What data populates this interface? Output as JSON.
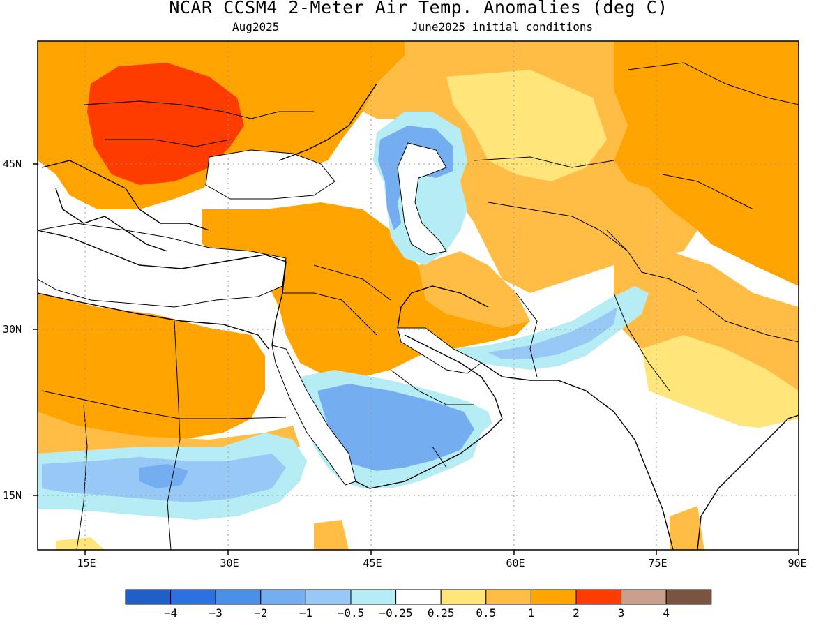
{
  "header": {
    "title": "NCAR_CCSM4 2-Meter Air Temp. Anomalies (deg C)",
    "valid_month": "Aug2025",
    "initial_conditions": "June2025 initial conditions"
  },
  "axes": {
    "lat_ticks": [
      "45N",
      "30N",
      "15N"
    ],
    "lon_ticks": [
      "15E",
      "30E",
      "45E",
      "60E",
      "75E",
      "90E"
    ]
  },
  "colorbar": {
    "colors": [
      "#1f5fc8",
      "#2b72e0",
      "#4a90e8",
      "#75aef0",
      "#98c8f5",
      "#b6ecf4",
      "#ffffff",
      "#ffe57a",
      "#ffbd45",
      "#ffa400",
      "#ff3c00",
      "#c8a08c",
      "#7a5440"
    ],
    "labels": [
      "−4",
      "−3",
      "−2",
      "−1",
      "−0.5",
      "−0.25",
      "0.25",
      "0.5",
      "1",
      "2",
      "3",
      "4"
    ]
  }
}
